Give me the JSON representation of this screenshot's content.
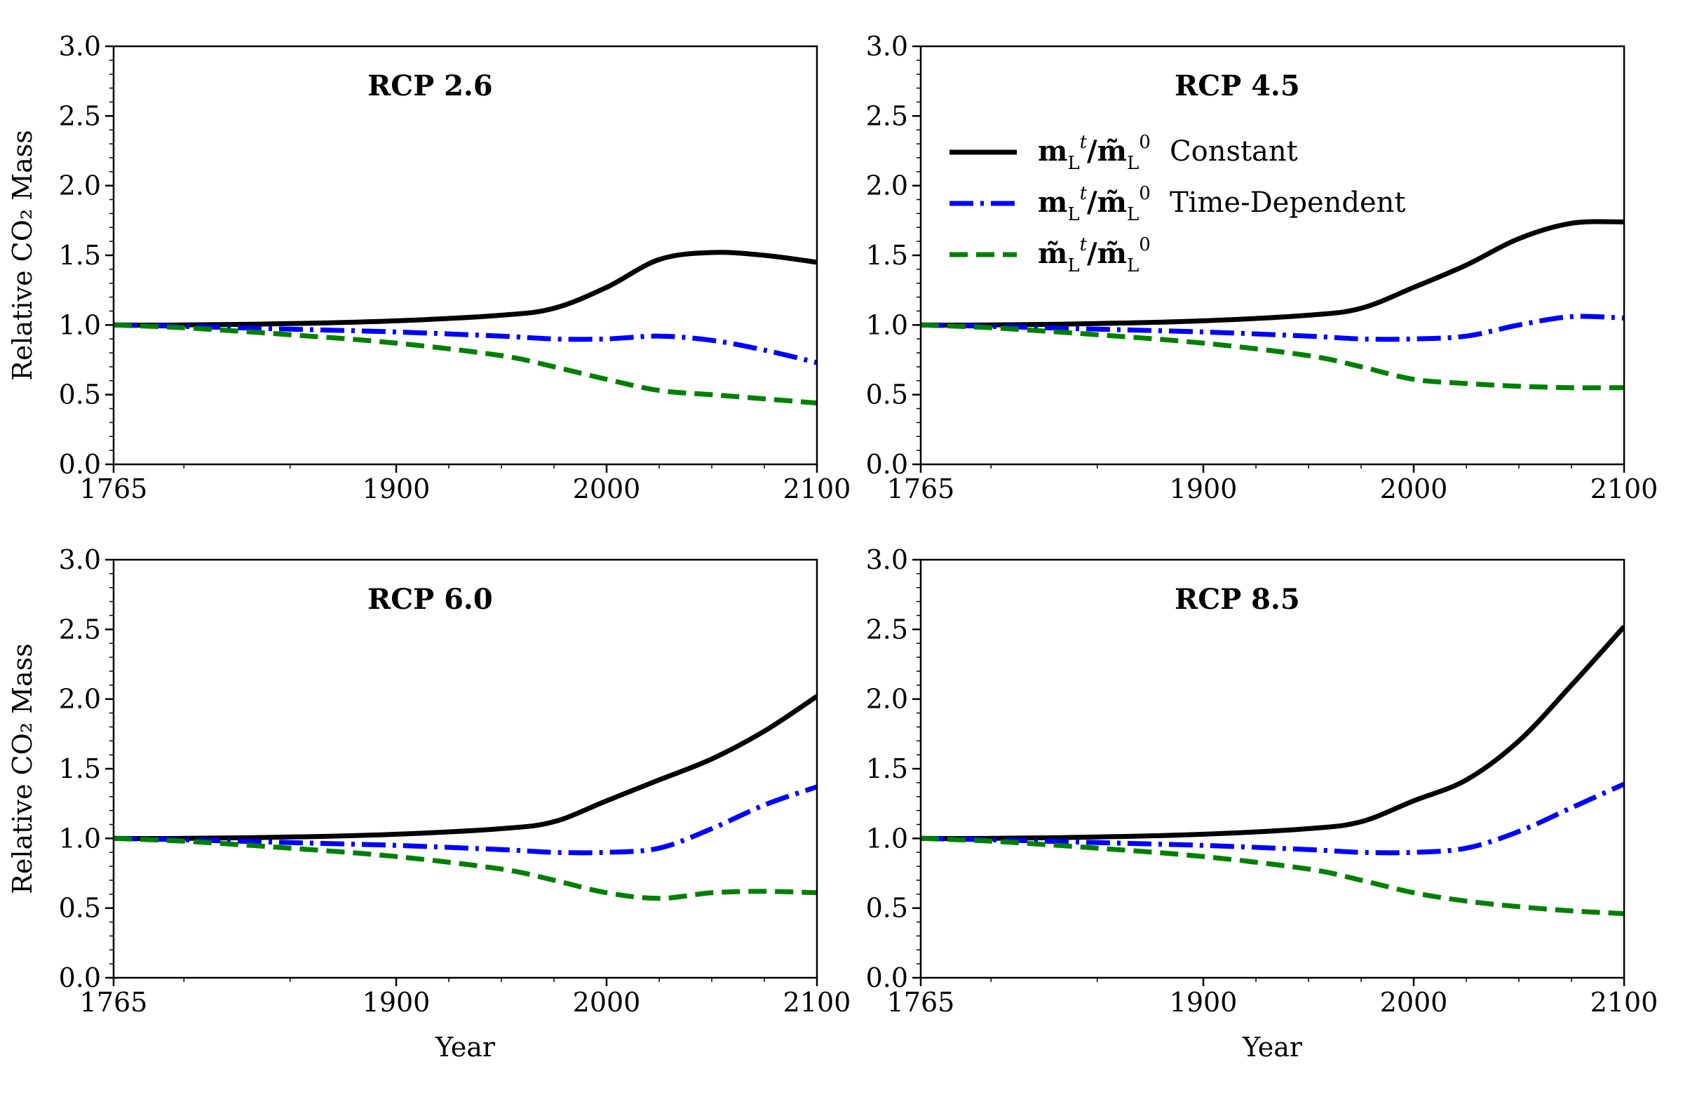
{
  "chart_data": {
    "type": "line",
    "layout": "2x2 grid",
    "legend": {
      "placement": "upper-left of top-right panel",
      "entries": [
        {
          "label": "m_L^t / m̃_L^0 Constant",
          "color": "#000000",
          "style": "solid"
        },
        {
          "label": "m_L^t / m̃_L^0 Time-Dependent",
          "color": "#0000ff",
          "style": "dash-dot"
        },
        {
          "label": "m̃_L^t / m̃_L^0",
          "color": "#008000",
          "style": "dashed"
        }
      ]
    },
    "legend_text": [
      "Constant",
      "Time-Dependent"
    ],
    "axes": {
      "xlabel": "Year",
      "ylabel": "Relative CO₂ Mass",
      "xticks": [
        1765,
        1900,
        2000,
        2100
      ],
      "yticks": [
        "0.0",
        "0.5",
        "1.0",
        "1.5",
        "2.0",
        "2.5",
        "3.0"
      ],
      "xlim": [
        1765,
        2100
      ],
      "ylim": [
        0,
        3
      ],
      "x_scale": "nonlinear (1765–1900 compressed)",
      "grid": false
    },
    "panels": [
      {
        "title": "RCP 2.6",
        "series": [
          {
            "x": [
              1765,
              1800,
              1850,
              1900,
              1950,
              1975,
              2000,
              2025,
              2050,
              2075,
              2100
            ],
            "y": [
              1.0,
              1.0,
              1.01,
              1.03,
              1.07,
              1.12,
              1.27,
              1.47,
              1.52,
              1.5,
              1.45
            ]
          },
          {
            "x": [
              1765,
              1800,
              1850,
              1900,
              1950,
              1975,
              2000,
              2025,
              2050,
              2075,
              2100
            ],
            "y": [
              1.0,
              0.99,
              0.97,
              0.95,
              0.92,
              0.9,
              0.9,
              0.92,
              0.89,
              0.82,
              0.73
            ]
          },
          {
            "x": [
              1765,
              1800,
              1850,
              1900,
              1950,
              1975,
              2000,
              2025,
              2050,
              2075,
              2100
            ],
            "y": [
              1.0,
              0.98,
              0.93,
              0.87,
              0.78,
              0.7,
              0.61,
              0.53,
              0.5,
              0.47,
              0.44
            ]
          }
        ]
      },
      {
        "title": "RCP 4.5",
        "series": [
          {
            "x": [
              1765,
              1800,
              1850,
              1900,
              1950,
              1975,
              2000,
              2025,
              2050,
              2075,
              2100
            ],
            "y": [
              1.0,
              1.0,
              1.01,
              1.03,
              1.07,
              1.12,
              1.27,
              1.43,
              1.62,
              1.73,
              1.74
            ]
          },
          {
            "x": [
              1765,
              1800,
              1850,
              1900,
              1950,
              1975,
              2000,
              2025,
              2050,
              2075,
              2100
            ],
            "y": [
              1.0,
              0.99,
              0.97,
              0.95,
              0.92,
              0.9,
              0.9,
              0.92,
              1.0,
              1.06,
              1.05
            ]
          },
          {
            "x": [
              1765,
              1800,
              1850,
              1900,
              1950,
              1975,
              2000,
              2025,
              2050,
              2075,
              2100
            ],
            "y": [
              1.0,
              0.98,
              0.93,
              0.87,
              0.78,
              0.7,
              0.61,
              0.58,
              0.56,
              0.55,
              0.55
            ]
          }
        ]
      },
      {
        "title": "RCP 6.0",
        "series": [
          {
            "x": [
              1765,
              1800,
              1850,
              1900,
              1950,
              1975,
              2000,
              2025,
              2050,
              2075,
              2100
            ],
            "y": [
              1.0,
              1.0,
              1.01,
              1.03,
              1.07,
              1.12,
              1.27,
              1.42,
              1.57,
              1.77,
              2.02
            ]
          },
          {
            "x": [
              1765,
              1800,
              1850,
              1900,
              1950,
              1975,
              2000,
              2025,
              2050,
              2075,
              2100
            ],
            "y": [
              1.0,
              0.99,
              0.97,
              0.95,
              0.92,
              0.9,
              0.9,
              0.93,
              1.07,
              1.24,
              1.37
            ]
          },
          {
            "x": [
              1765,
              1800,
              1850,
              1900,
              1950,
              1975,
              2000,
              2025,
              2050,
              2075,
              2100
            ],
            "y": [
              1.0,
              0.98,
              0.93,
              0.87,
              0.78,
              0.7,
              0.61,
              0.57,
              0.61,
              0.62,
              0.61
            ]
          }
        ]
      },
      {
        "title": "RCP 8.5",
        "series": [
          {
            "x": [
              1765,
              1800,
              1850,
              1900,
              1950,
              1975,
              2000,
              2025,
              2050,
              2075,
              2100
            ],
            "y": [
              1.0,
              1.0,
              1.01,
              1.03,
              1.07,
              1.12,
              1.27,
              1.42,
              1.7,
              2.1,
              2.52
            ]
          },
          {
            "x": [
              1765,
              1800,
              1850,
              1900,
              1950,
              1975,
              2000,
              2025,
              2050,
              2075,
              2100
            ],
            "y": [
              1.0,
              0.99,
              0.97,
              0.95,
              0.92,
              0.9,
              0.9,
              0.93,
              1.05,
              1.22,
              1.39
            ]
          },
          {
            "x": [
              1765,
              1800,
              1850,
              1900,
              1950,
              1975,
              2000,
              2025,
              2050,
              2075,
              2100
            ],
            "y": [
              1.0,
              0.98,
              0.93,
              0.87,
              0.78,
              0.7,
              0.61,
              0.55,
              0.51,
              0.48,
              0.46
            ]
          }
        ]
      }
    ]
  }
}
